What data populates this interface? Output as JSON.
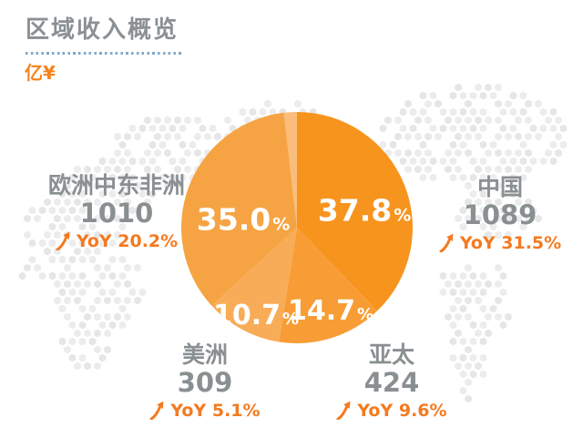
{
  "header": {
    "title": "区域收入概览",
    "unit_label": "亿¥"
  },
  "chart_data": {
    "type": "pie",
    "title": "区域收入概览",
    "unit": "亿¥",
    "percent_sign": "%",
    "start_angle_deg": 0,
    "direction": "clockwise",
    "legend_position": "callout labels around pie",
    "slices": [
      {
        "name": "中国",
        "value": 1089,
        "pct": 37.8,
        "pct_label": "37.8",
        "yoy": "YoY 31.5%",
        "color": "#F7941E"
      },
      {
        "name": "亚太",
        "value": 424,
        "pct": 14.7,
        "pct_label": "14.7",
        "yoy": "YoY 9.6%",
        "color": "#F89D35"
      },
      {
        "name": "美洲",
        "value": 309,
        "pct": 10.7,
        "pct_label": "10.7",
        "yoy": "YoY 5.1%",
        "color": "#F9AC57"
      },
      {
        "name": "欧洲中东非洲",
        "value": 1010,
        "pct": 35.0,
        "pct_label": "35.0",
        "yoy": "YoY 20.2%",
        "color": "#F6A443"
      },
      {
        "name": "unlabeled",
        "pct": 1.8,
        "color": "#FABD7C"
      }
    ],
    "colors": {
      "accent_orange": "#F47A20",
      "text_gray": "#8A8F92",
      "underline_blue": "#7FA8C9",
      "map_dot_gray": "#EBEBEB"
    }
  }
}
